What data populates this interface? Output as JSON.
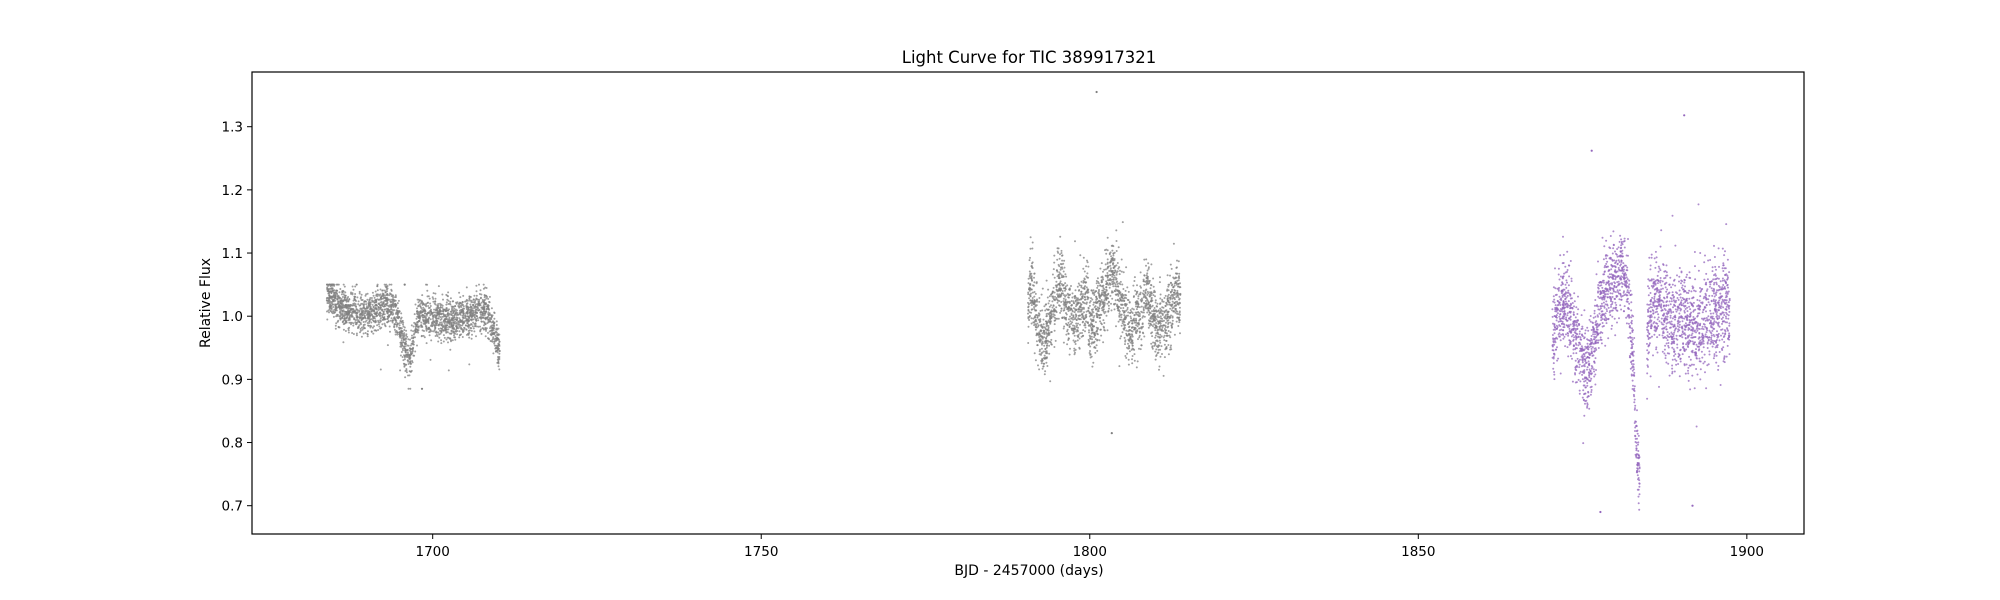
{
  "chart_data": {
    "type": "scatter",
    "title": "Light Curve for TIC 389917321",
    "xlabel": "BJD - 2457000 (days)",
    "ylabel": "Relative Flux",
    "xlim": [
      1672.5,
      1908.7
    ],
    "ylim": [
      0.6552,
      1.3866
    ],
    "x_ticks": [
      1700,
      1750,
      1800,
      1850,
      1900
    ],
    "x_tick_labels": [
      "1700",
      "1750",
      "1800",
      "1850",
      "1900"
    ],
    "y_ticks": [
      0.7,
      0.8,
      0.9,
      1.0,
      1.1,
      1.2,
      1.3
    ],
    "y_tick_labels": [
      "0.7",
      "0.8",
      "0.9",
      "1.0",
      "1.1",
      "1.2",
      "1.3"
    ],
    "grid": false,
    "colors": {
      "gray_series": "#808080",
      "purple_series": "#9467bd"
    },
    "series": [
      {
        "color": "#808080",
        "segments": [
          {
            "x_range": [
              1683.9,
              1710.2
            ],
            "median_flux": 1.0,
            "scatter": 0.03,
            "min": 0.885,
            "max": 1.05
          },
          {
            "x_range": [
              1790.6,
              1813.8
            ],
            "median_flux": 1.0,
            "scatter": 0.05,
            "min": 0.815,
            "max": 1.355
          }
        ],
        "x": [
          1684.0,
          1685.0,
          1686.0,
          1687.0,
          1688.0,
          1689.0,
          1690.0,
          1691.0,
          1692.0,
          1693.0,
          1694.0,
          1694.8,
          1695.5,
          1696.1,
          1696.6,
          1697.2,
          1697.7,
          1698.5,
          1699.5,
          1700.5,
          1701.5,
          1702.5,
          1703.5,
          1704.5,
          1705.5,
          1706.5,
          1707.5,
          1708.5,
          1709.3,
          1710.0,
          1790.7,
          1791.0,
          1791.5,
          1792.2,
          1793.0,
          1793.8,
          1794.5,
          1795.2,
          1795.8,
          1796.5,
          1797.3,
          1798.2,
          1799.0,
          1799.6,
          1800.1,
          1803.5,
          1804.3,
          1805.0,
          1805.8,
          1806.5,
          1807.2,
          1808.0,
          1808.6,
          1809.5,
          1810.4,
          1811.2,
          1812.0,
          1812.7,
          1813.2,
          1813.7
        ],
        "y": [
          1.035,
          1.025,
          1.015,
          1.01,
          1.01,
          1.005,
          1.005,
          1.01,
          1.015,
          1.02,
          1.015,
          0.99,
          0.96,
          0.94,
          0.93,
          0.975,
          1.0,
          1.0,
          1.0,
          1.0,
          0.995,
          0.995,
          0.995,
          1.0,
          1.0,
          1.005,
          1.01,
          1.0,
          0.975,
          0.95,
          1.02,
          1.06,
          1.02,
          0.975,
          0.96,
          0.99,
          1.005,
          1.06,
          1.05,
          1.01,
          1.0,
          1.0,
          1.02,
          1.04,
          0.975,
          1.07,
          1.045,
          1.015,
          0.99,
          0.98,
          1.0,
          1.01,
          1.045,
          1.0,
          0.98,
          0.99,
          1.0,
          1.02,
          1.04,
          1.03
        ]
      },
      {
        "color": "#9467bd",
        "segments": [
          {
            "x_range": [
              1870.4,
              1883.7
            ],
            "median_flux": 1.0,
            "scatter": 0.06,
            "min": 0.69,
            "max": 1.262
          },
          {
            "x_range": [
              1884.8,
              1897.4
            ],
            "median_flux": 1.0,
            "scatter": 0.07,
            "min": 0.7,
            "max": 1.318
          }
        ],
        "x": [
          1870.5,
          1871.2,
          1872.0,
          1872.8,
          1873.5,
          1874.2,
          1875.0,
          1875.8,
          1876.5,
          1877.2,
          1878.0,
          1878.7,
          1879.4,
          1880.2,
          1881.0,
          1881.7,
          1882.4,
          1882.9,
          1883.3,
          1883.6,
          1885.0,
          1886.0,
          1887.0,
          1888.0,
          1889.0,
          1890.0,
          1891.0,
          1892.0,
          1893.0,
          1894.0,
          1895.0,
          1896.0,
          1897.0
        ],
        "y": [
          0.96,
          1.0,
          1.03,
          1.02,
          0.99,
          0.96,
          0.93,
          0.92,
          0.95,
          0.99,
          1.02,
          1.04,
          1.05,
          1.06,
          1.08,
          1.05,
          0.98,
          0.87,
          0.78,
          0.74,
          0.99,
          1.03,
          1.02,
          1.0,
          0.99,
          0.985,
          0.98,
          0.985,
          0.99,
          1.0,
          1.005,
          1.01,
          1.02
        ]
      }
    ]
  }
}
